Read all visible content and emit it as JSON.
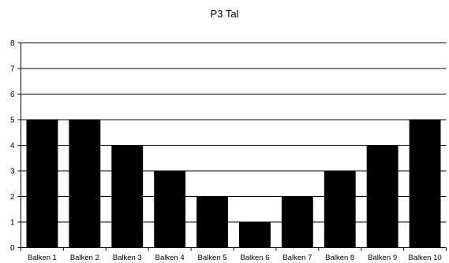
{
  "chart_data": {
    "type": "bar",
    "title": "P3 Tal",
    "xlabel": "",
    "ylabel": "",
    "categories": [
      "Balken 1",
      "Balken 2",
      "Balken 3",
      "Balken 4",
      "Balken 5",
      "Balken 6",
      "Balken 7",
      "Balken 8",
      "Balken 9",
      "Balken 10"
    ],
    "values": [
      5,
      5,
      4,
      3,
      2,
      1,
      2,
      3,
      4,
      5
    ],
    "ylim": [
      0,
      8
    ],
    "yticks": [
      "0",
      "1",
      "2",
      "3",
      "4",
      "5",
      "6",
      "7",
      "8"
    ],
    "grid": true,
    "legend": "none",
    "bar_color": "#000000",
    "grid_color": "#000000"
  }
}
